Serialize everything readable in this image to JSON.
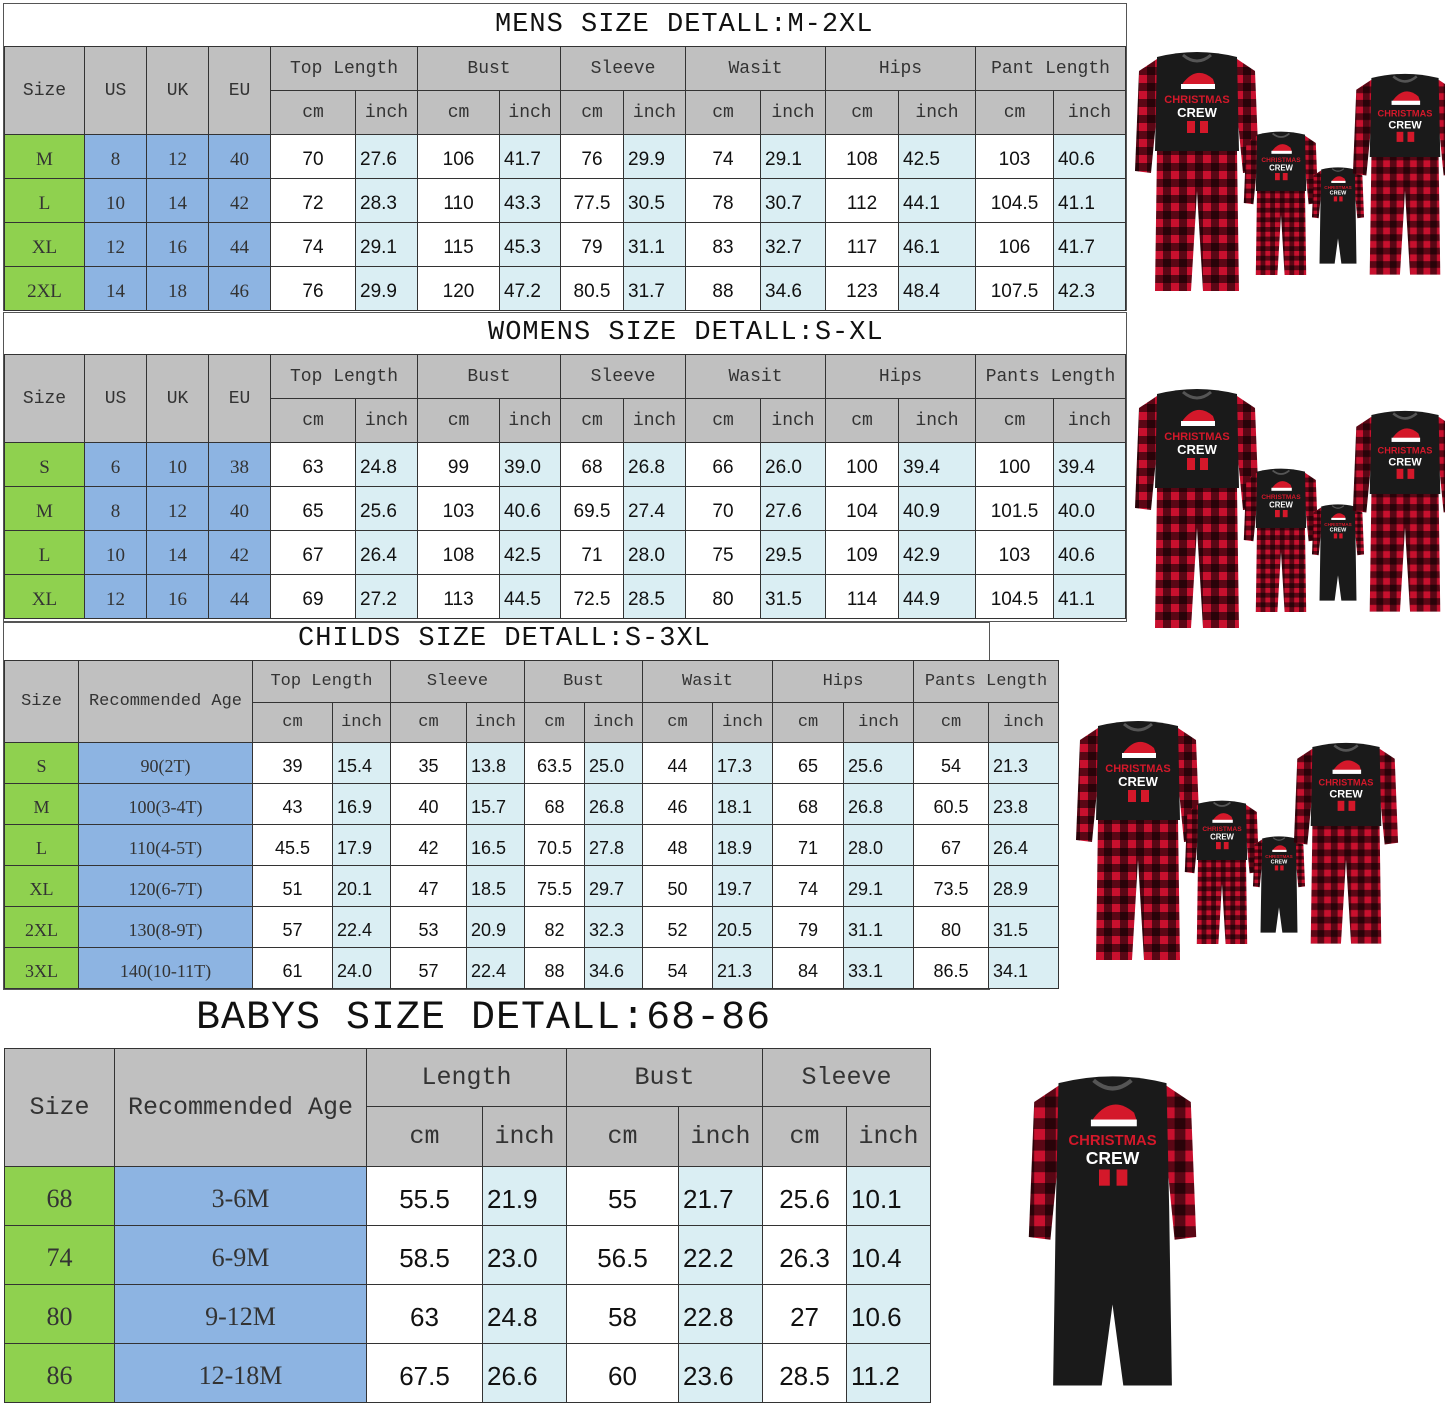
{
  "colors": {
    "header": "#c0c0c0",
    "size_col": "#8fd14f",
    "conversion_col": "#8db4e2",
    "inch_col": "#daeef3",
    "shirt": "#1a1a1a",
    "plaid_red": "#c8102e"
  },
  "shirt_print": "CHRISTMAS CREW",
  "mens": {
    "title": "MENS SIZE DETALL:M-2XL",
    "fixed_headers": [
      "Size",
      "US",
      "UK",
      "EU"
    ],
    "groups": [
      "Top Length",
      "Bust",
      "Sleeve",
      "Wasit",
      "Hips",
      "Pant Length"
    ],
    "units": [
      "cm",
      "inch"
    ],
    "rows": [
      [
        "M",
        "8",
        "12",
        "40",
        "70",
        "27.6",
        "106",
        "41.7",
        "76",
        "29.9",
        "74",
        "29.1",
        "108",
        "42.5",
        "103",
        "40.6"
      ],
      [
        "L",
        "10",
        "14",
        "42",
        "72",
        "28.3",
        "110",
        "43.3",
        "77.5",
        "30.5",
        "78",
        "30.7",
        "112",
        "44.1",
        "104.5",
        "41.1"
      ],
      [
        "XL",
        "12",
        "16",
        "44",
        "74",
        "29.1",
        "115",
        "45.3",
        "79",
        "31.1",
        "83",
        "32.7",
        "117",
        "46.1",
        "106",
        "41.7"
      ],
      [
        "2XL",
        "14",
        "18",
        "46",
        "76",
        "29.9",
        "120",
        "47.2",
        "80.5",
        "31.7",
        "88",
        "34.6",
        "123",
        "48.4",
        "107.5",
        "42.3"
      ]
    ]
  },
  "womens": {
    "title": "WOMENS SIZE DETALL:S-XL",
    "fixed_headers": [
      "Size",
      "US",
      "UK",
      "EU"
    ],
    "groups": [
      "Top Length",
      "Bust",
      "Sleeve",
      "Wasit",
      "Hips",
      "Pants Length"
    ],
    "units": [
      "cm",
      "inch"
    ],
    "rows": [
      [
        "S",
        "6",
        "10",
        "38",
        "63",
        "24.8",
        "99",
        "39.0",
        "68",
        "26.8",
        "66",
        "26.0",
        "100",
        "39.4",
        "100",
        "39.4"
      ],
      [
        "M",
        "8",
        "12",
        "40",
        "65",
        "25.6",
        "103",
        "40.6",
        "69.5",
        "27.4",
        "70",
        "27.6",
        "104",
        "40.9",
        "101.5",
        "40.0"
      ],
      [
        "L",
        "10",
        "14",
        "42",
        "67",
        "26.4",
        "108",
        "42.5",
        "71",
        "28.0",
        "75",
        "29.5",
        "109",
        "42.9",
        "103",
        "40.6"
      ],
      [
        "XL",
        "12",
        "16",
        "44",
        "69",
        "27.2",
        "113",
        "44.5",
        "72.5",
        "28.5",
        "80",
        "31.5",
        "114",
        "44.9",
        "104.5",
        "41.1"
      ]
    ]
  },
  "childs": {
    "title": "CHILDS SIZE DETALL:S-3XL",
    "fixed_headers": [
      "Size",
      "Recommended Age"
    ],
    "groups": [
      "Top Length",
      "Sleeve",
      "Bust",
      "Wasit",
      "Hips",
      "Pants Length"
    ],
    "units": [
      "cm",
      "inch"
    ],
    "rows": [
      [
        "S",
        "90(2T)",
        "39",
        "15.4",
        "35",
        "13.8",
        "63.5",
        "25.0",
        "44",
        "17.3",
        "65",
        "25.6",
        "54",
        "21.3"
      ],
      [
        "M",
        "100(3-4T)",
        "43",
        "16.9",
        "40",
        "15.7",
        "68",
        "26.8",
        "46",
        "18.1",
        "68",
        "26.8",
        "60.5",
        "23.8"
      ],
      [
        "L",
        "110(4-5T)",
        "45.5",
        "17.9",
        "42",
        "16.5",
        "70.5",
        "27.8",
        "48",
        "18.9",
        "71",
        "28.0",
        "67",
        "26.4"
      ],
      [
        "XL",
        "120(6-7T)",
        "51",
        "20.1",
        "47",
        "18.5",
        "75.5",
        "29.7",
        "50",
        "19.7",
        "74",
        "29.1",
        "73.5",
        "28.9"
      ],
      [
        "2XL",
        "130(8-9T)",
        "57",
        "22.4",
        "53",
        "20.9",
        "82",
        "32.3",
        "52",
        "20.5",
        "79",
        "31.1",
        "80",
        "31.5"
      ],
      [
        "3XL",
        "140(10-11T)",
        "61",
        "24.0",
        "57",
        "22.4",
        "88",
        "34.6",
        "54",
        "21.3",
        "84",
        "33.1",
        "86.5",
        "34.1"
      ]
    ]
  },
  "babys": {
    "title": "BABYS SIZE DETALL:68-86",
    "fixed_headers": [
      "Size",
      "Recommended Age"
    ],
    "groups": [
      "Length",
      "Bust",
      "Sleeve"
    ],
    "units": [
      "cm",
      "inch"
    ],
    "rows": [
      [
        "68",
        "3-6M",
        "55.5",
        "21.9",
        "55",
        "21.7",
        "25.6",
        "10.1"
      ],
      [
        "74",
        "6-9M",
        "58.5",
        "23.0",
        "56.5",
        "22.2",
        "26.3",
        "10.4"
      ],
      [
        "80",
        "9-12M",
        "63",
        "24.8",
        "58",
        "22.8",
        "27",
        "10.6"
      ],
      [
        "86",
        "12-18M",
        "67.5",
        "26.6",
        "60",
        "23.6",
        "28.5",
        "11.2"
      ]
    ]
  }
}
